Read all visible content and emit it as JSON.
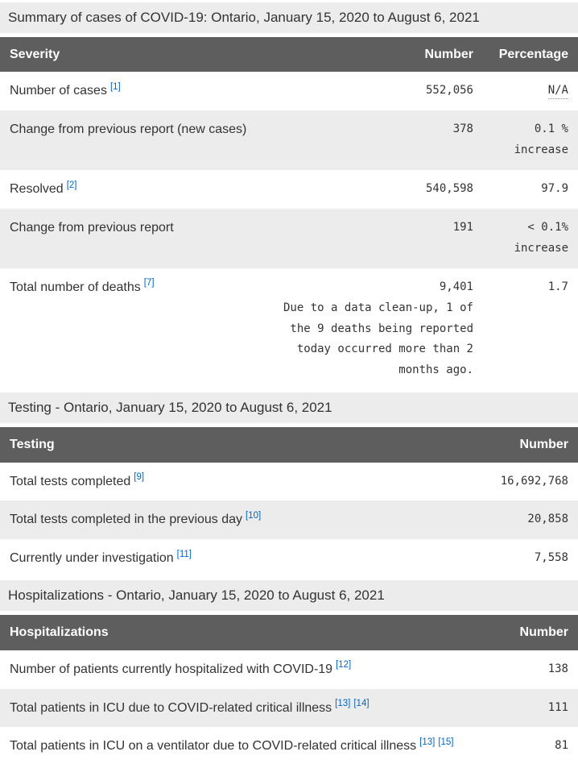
{
  "summary": {
    "caption": "Summary of cases of COVID-19: Ontario, January 15, 2020 to August 6, 2021",
    "columns": {
      "severity": "Severity",
      "number": "Number",
      "percentage": "Percentage"
    },
    "rows": [
      {
        "label": "Number of cases",
        "footnote1": "[1]",
        "number": "552,056",
        "percentage": "N/A"
      },
      {
        "label": "Change from previous report (new cases)",
        "number": "378",
        "percentage": "0.1 % increase"
      },
      {
        "label": "Resolved",
        "footnote1": "[2]",
        "number": "540,598",
        "percentage": "97.9"
      },
      {
        "label": "Change from previous report",
        "number": "191",
        "percentage": "< 0.1% increase"
      },
      {
        "label": "Total number of deaths",
        "footnote1": "[7]",
        "number": "9,401",
        "note": "Due to a data clean-up, 1 of the 9 deaths being reported today occurred more than 2 months ago.",
        "percentage": "1.7"
      }
    ]
  },
  "testing": {
    "caption": "Testing - Ontario, January 15, 2020 to August 6, 2021",
    "columns": {
      "label": "Testing",
      "number": "Number"
    },
    "rows": [
      {
        "label": "Total tests completed",
        "footnote1": "[9]",
        "number": "16,692,768"
      },
      {
        "label": "Total tests completed in the previous day",
        "footnote1": "[10]",
        "number": "20,858"
      },
      {
        "label": "Currently under investigation",
        "footnote1": "[11]",
        "number": "7,558"
      }
    ]
  },
  "hospitalizations": {
    "caption": "Hospitalizations - Ontario, January 15, 2020 to August 6, 2021",
    "columns": {
      "label": "Hospitalizations",
      "number": "Number"
    },
    "rows": [
      {
        "label": "Number of patients currently hospitalized with COVID-19",
        "footnote1": "[12]",
        "number": "138"
      },
      {
        "label": "Total patients in ICU due to COVID-related critical illness",
        "footnote1": "[13]",
        "footnote2": "[14]",
        "number": "111"
      },
      {
        "label": "Total patients in ICU on a ventilator due to COVID-related critical illness",
        "footnote1": "[13]",
        "footnote2": "[15]",
        "number": "81"
      }
    ]
  },
  "colors": {
    "header_bg": "#5e5e5e",
    "header_text": "#ffffff",
    "stripe_bg": "#ececec",
    "caption_bg": "#ececec",
    "body_text": "#333333",
    "footnote_link": "#0066cc"
  }
}
